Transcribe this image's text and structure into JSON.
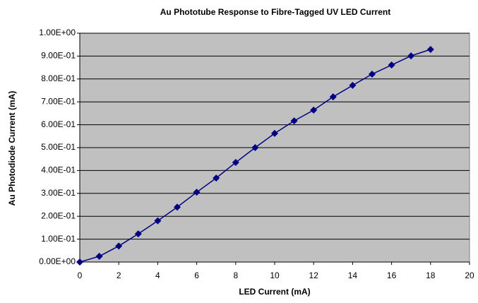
{
  "chart_data": {
    "type": "line",
    "title": "Au  Phototube Response to Fibre-Tagged UV LED Current",
    "x_label": "LED Current (mA)",
    "y_label": "Au Photodiode Current (mA)",
    "x": [
      0,
      1,
      2,
      3,
      4,
      5,
      6,
      7,
      8,
      9,
      10,
      11,
      12,
      13,
      14,
      15,
      16,
      17,
      18
    ],
    "series": [
      {
        "name": "Au",
        "color": "#000080",
        "values": [
          0,
          0.025,
          0.07,
          0.123,
          0.18,
          0.24,
          0.305,
          0.367,
          0.435,
          0.5,
          0.562,
          0.617,
          0.664,
          0.722,
          0.772,
          0.821,
          0.861,
          0.901,
          0.929
        ]
      }
    ],
    "xlim": [
      0,
      20
    ],
    "xticks": [
      0,
      2,
      4,
      6,
      8,
      10,
      12,
      14,
      16,
      18,
      20
    ],
    "ylim": [
      0,
      1
    ],
    "yticks": [
      {
        "value": 0,
        "label": "0.00E+00"
      },
      {
        "value": 0.1,
        "label": "1.00E-01"
      },
      {
        "value": 0.2,
        "label": "2.00E-01"
      },
      {
        "value": 0.3,
        "label": "3.00E-01"
      },
      {
        "value": 0.4,
        "label": "4.00E-01"
      },
      {
        "value": 0.5,
        "label": "5.00E-01"
      },
      {
        "value": 0.6,
        "label": "6.00E-01"
      },
      {
        "value": 0.7,
        "label": "7.00E-01"
      },
      {
        "value": 0.8,
        "label": "8.00E-01"
      },
      {
        "value": 0.9,
        "label": "9.00E-01"
      },
      {
        "value": 1,
        "label": "1.00E+00"
      }
    ],
    "grid": true,
    "plot_background": "#c0c0c0"
  }
}
